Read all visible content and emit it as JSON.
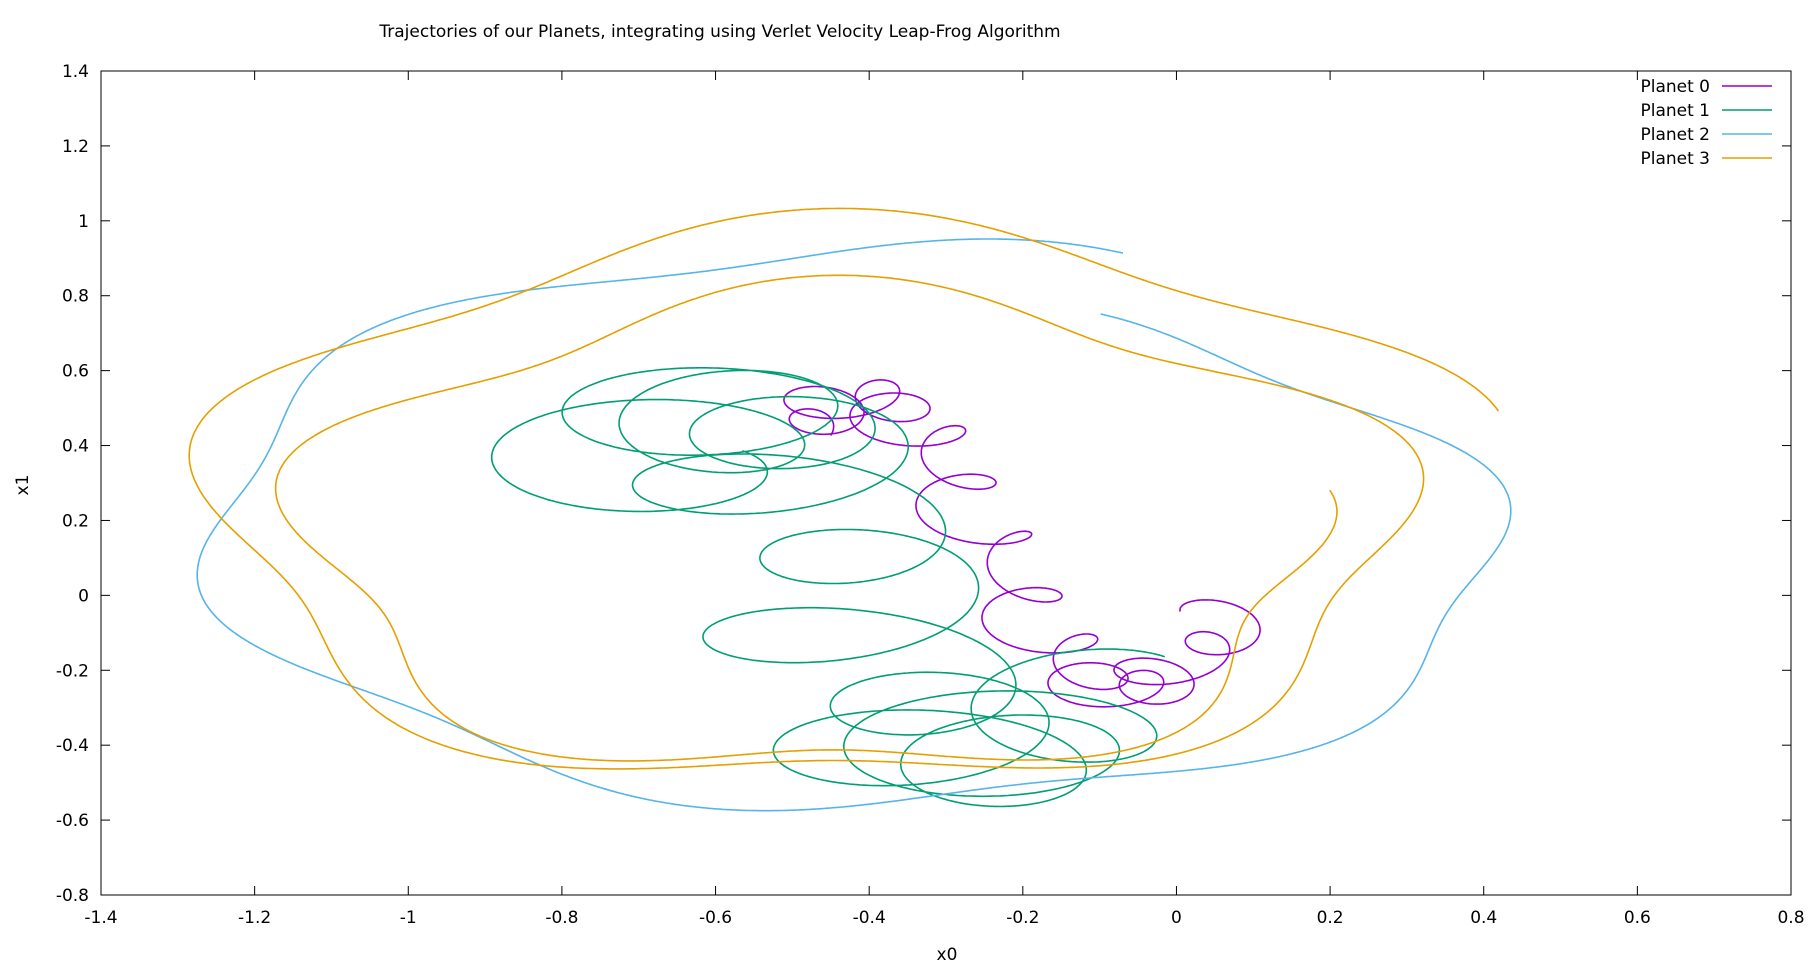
{
  "chart_data": {
    "type": "line",
    "title": "Trajectories of our Planets, integrating using Verlet Velocity Leap-Frog Algorithm",
    "xlabel": "x0",
    "ylabel": "x1",
    "xlim": [
      -1.4,
      0.8
    ],
    "ylim": [
      -0.8,
      1.4
    ],
    "xticks": [
      "-1.4",
      "-1.2",
      "-1",
      "-0.8",
      "-0.6",
      "-0.4",
      "-0.2",
      "0",
      "0.2",
      "0.4",
      "0.6",
      "0.8"
    ],
    "yticks": [
      "-0.8",
      "-0.6",
      "-0.4",
      "-0.2",
      "0",
      "0.2",
      "0.4",
      "0.6",
      "0.8",
      "1",
      "1.2",
      "1.4"
    ],
    "grid": false,
    "legend_position": "top-right",
    "series": [
      {
        "name": "Planet 0",
        "color": "#9400d3",
        "path": {
          "cx0": -0.5,
          "cy0": 0.35,
          "cx1": 0.08,
          "cy1": -0.12,
          "r0": 0.05,
          "r1": 0.05,
          "ry": 1.0,
          "rev": 13.5,
          "slope": 0.025,
          "phase": 0.0,
          "waveA": 0.26,
          "waveN": 1.0,
          "waveP": 0.3,
          "dir": 1
        }
      },
      {
        "name": "Planet 1",
        "color": "#009e73",
        "path": {
          "cx0": -0.7,
          "cy0": 0.3,
          "cx1": -0.15,
          "cy1": -0.25,
          "r0": 0.16,
          "r1": 0.16,
          "ry": 0.75,
          "rev": 12.0,
          "slope": 0.06,
          "phase": 0.8,
          "waveA": 0.32,
          "waveN": 1.0,
          "waveP": 0.0,
          "dir": -1
        }
      },
      {
        "name": "Planet 2",
        "color": "#56b4e9",
        "path": {
          "cx0": -0.4,
          "cy0": 0.2,
          "cx1": -0.4,
          "cy1": 0.1,
          "r0": 0.88,
          "r1": 0.8,
          "ry": 0.84,
          "rev": 1.0,
          "slope": 0.0,
          "phase": 1.2,
          "wobA": 0.04,
          "wobN": 6.0,
          "dir": 1
        }
      },
      {
        "name": "Planet 3",
        "color": "#e69f00",
        "path": {
          "cx0": -0.45,
          "cy0": 0.25,
          "cx1": -0.45,
          "cy1": 0.1,
          "r0": 0.85,
          "r1": 0.62,
          "ry": 0.9,
          "rev": 2.0,
          "slope": 0.0,
          "phase": 0.3,
          "wobA": 0.06,
          "wobN": 5.0,
          "dir": 1
        }
      }
    ]
  }
}
